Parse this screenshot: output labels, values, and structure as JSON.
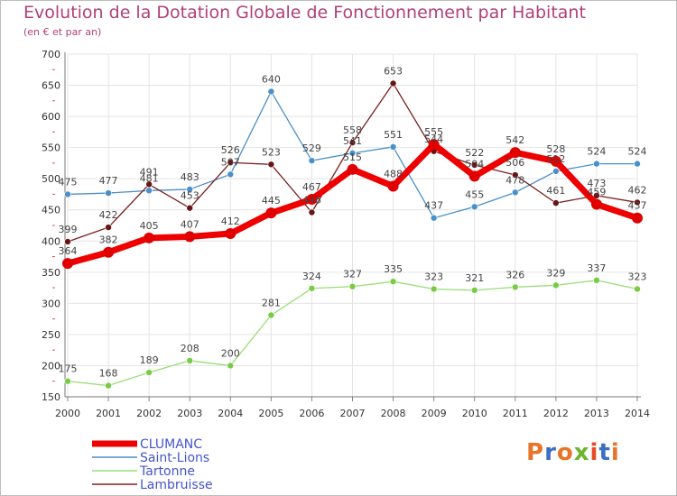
{
  "header": {
    "title": "Evolution de la Dotation Globale de Fonctionnement par Habitant",
    "subtitle": "(en € et par an)"
  },
  "logo": {
    "text": "Proxiti",
    "colors": [
      "#e8742a",
      "#3b6fc4",
      "#e8742a",
      "#6cb52e",
      "#e84a2a",
      "#3b6fc4",
      "#e8742a"
    ]
  },
  "chart_data": {
    "type": "line",
    "title": "Evolution de la Dotation Globale de Fonctionnement par Habitant",
    "subtitle": "(en € et par an)",
    "x": [
      "2000",
      "2001",
      "2002",
      "2003",
      "2004",
      "2005",
      "2006",
      "2007",
      "2008",
      "2009",
      "2010",
      "2011",
      "2012",
      "2013",
      "2014"
    ],
    "ylim": [
      150,
      700
    ],
    "yticks": [
      150,
      200,
      250,
      300,
      350,
      400,
      450,
      500,
      550,
      600,
      650,
      700
    ],
    "grid": true,
    "legend": "bottom-left",
    "series": [
      {
        "name": "CLUMANC",
        "color": "#ee0000",
        "width": 7,
        "dot": "#e00000",
        "dotr": 6,
        "values": [
          364,
          382,
          405,
          407,
          412,
          445,
          467,
          515,
          488,
          555,
          504,
          542,
          528,
          459,
          437
        ]
      },
      {
        "name": "Saint-Lions",
        "color": "#4a90c8",
        "width": 1.3,
        "dot": "#4a90c8",
        "dotr": 3.5,
        "values": [
          475,
          477,
          481,
          483,
          507,
          640,
          529,
          541,
          551,
          437,
          455,
          478,
          512,
          524,
          524
        ]
      },
      {
        "name": "Tartonne",
        "color": "#99dd77",
        "width": 1.3,
        "dot": "#77cc44",
        "dotr": 3.5,
        "values": [
          175,
          168,
          189,
          208,
          200,
          281,
          324,
          327,
          335,
          323,
          321,
          326,
          329,
          337,
          323
        ]
      },
      {
        "name": "Lambruisse",
        "color": "#7a2020",
        "width": 1.3,
        "dot": "#6a1515",
        "dotr": 3.5,
        "values": [
          399,
          422,
          491,
          453,
          526,
          523,
          446,
          558,
          653,
          544,
          522,
          506,
          461,
          473,
          462
        ]
      }
    ],
    "data_labels": [
      [
        364,
        382,
        405,
        407,
        412,
        445,
        467,
        515,
        488,
        555,
        504,
        542,
        528,
        459,
        437
      ],
      [
        475,
        477,
        481,
        483,
        507,
        640,
        529,
        541,
        551,
        437,
        455,
        478,
        512,
        524,
        524
      ],
      [
        175,
        168,
        189,
        208,
        200,
        281,
        324,
        327,
        335,
        323,
        321,
        326,
        329,
        337,
        323
      ],
      [
        399,
        422,
        491,
        453,
        526,
        523,
        446,
        558,
        653,
        544,
        522,
        506,
        461,
        473,
        462
      ]
    ]
  }
}
